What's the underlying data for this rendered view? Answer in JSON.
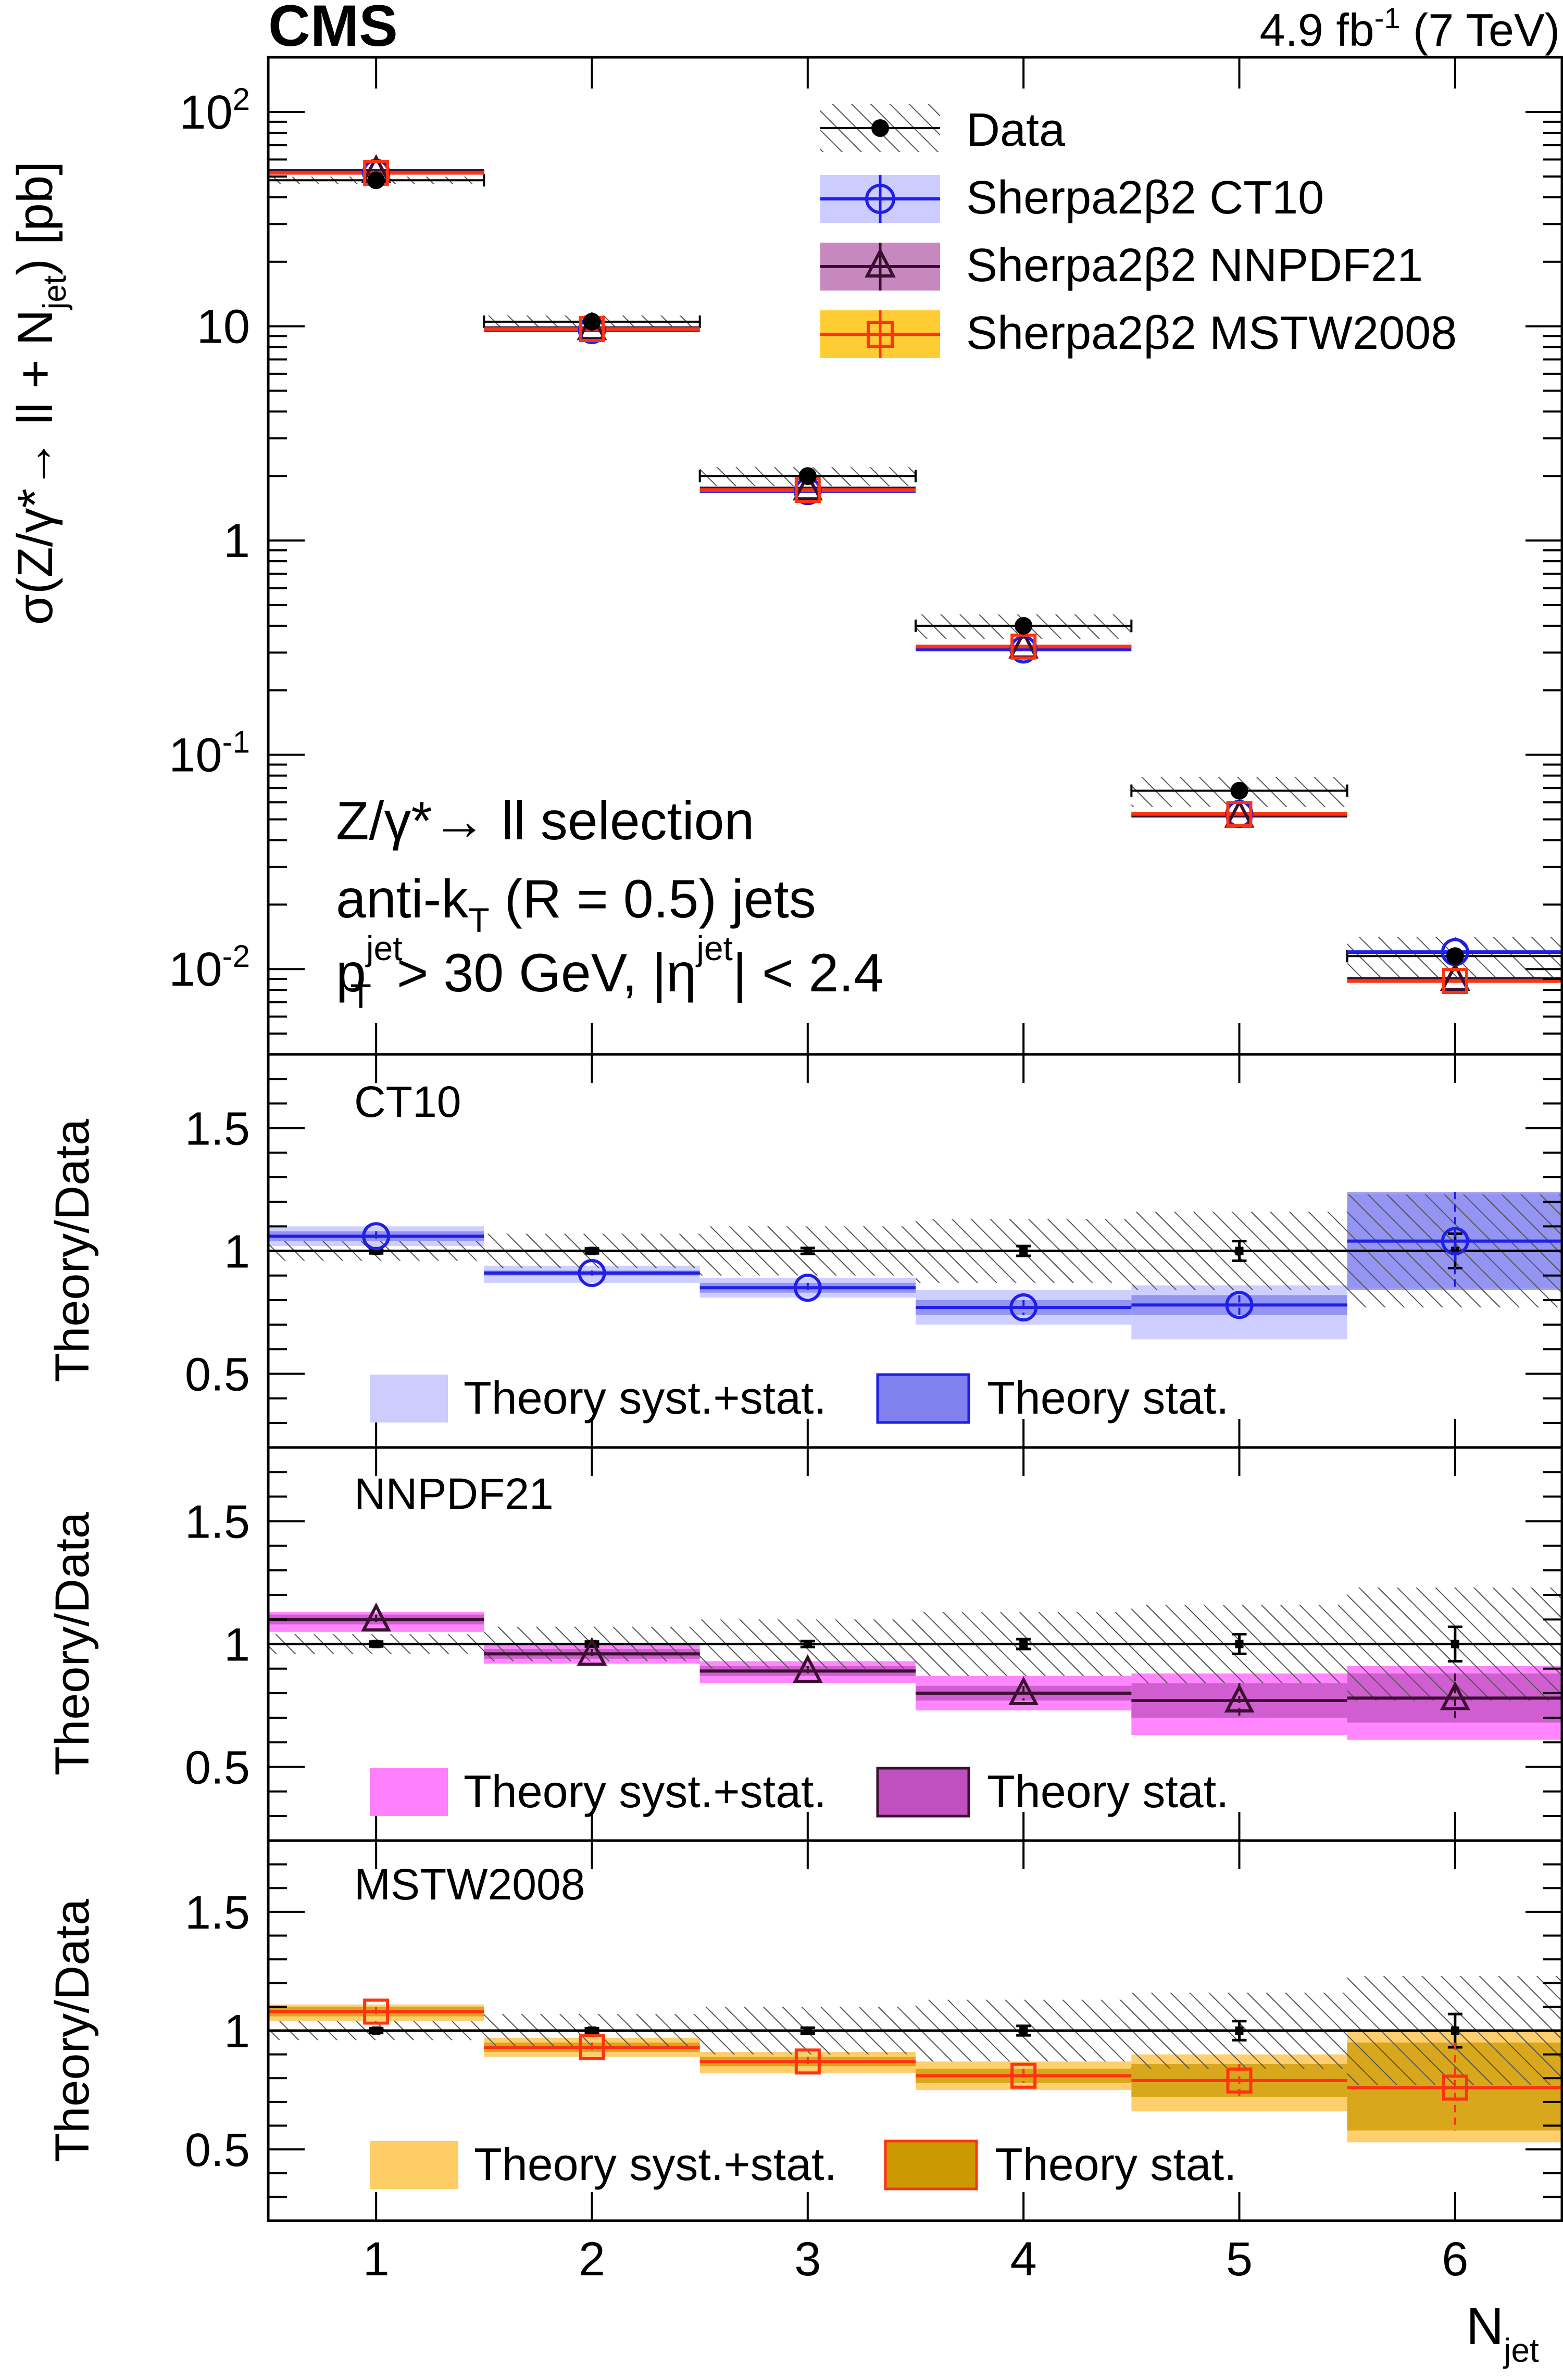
{
  "header": {
    "experiment": "CMS",
    "lumi": "4.9 fb",
    "lumi_exp": "-1",
    "energy": "(7 TeV)"
  },
  "colors": {
    "data": "#000000",
    "ct10_line": "#1f1fe6",
    "ct10_band_syst": "#ccccff",
    "ct10_band_stat": "#8080ee",
    "nnpdf_line": "#3a0f2f",
    "nnpdf_band_syst": "#ff80ff",
    "nnpdf_band_stat": "#c050c0",
    "mstw_marker": "#ff3311",
    "mstw_band_syst": "#ffcc66",
    "mstw_band_stat": "#cc9900",
    "hatch": "#555555"
  },
  "main_panel": {
    "y_title": "σ(Z/γ*→ ll + N",
    "y_title_sub": "jet",
    "y_title_end": ") [pb]",
    "y_ticks": [
      "10",
      "10",
      "1",
      "10",
      "10"
    ],
    "y_tick_exps": [
      "2",
      "",
      "",
      "-1",
      "-2"
    ],
    "legend": [
      "Data",
      "Sherpa2β2 CT10",
      "Sherpa2β2 NNPDF21",
      "Sherpa2β2 MSTW2008"
    ],
    "selection_line1": "Z/γ*→ ll selection",
    "selection_line2_a": "anti-k",
    "selection_line2_sub": "T",
    "selection_line2_b": " (R = 0.5) jets",
    "selection_line3_a": "p",
    "selection_line3_sup": "jet",
    "selection_line3_sub": "T",
    "selection_line3_b": " > 30 GeV, |η",
    "selection_line3_sup2": "jet",
    "selection_line3_c": "| < 2.4"
  },
  "ratio_panels": {
    "y_title": "Theory/Data",
    "y_ticks": [
      "1.5",
      "1",
      "0.5"
    ],
    "labels": [
      "CT10",
      "NNPDF21",
      "MSTW2008"
    ],
    "legend_syst": "Theory syst.+stat.",
    "legend_stat": "Theory stat."
  },
  "x_axis": {
    "title": "N",
    "title_sub": "jet",
    "ticks": [
      "1",
      "2",
      "3",
      "4",
      "5",
      "6"
    ]
  },
  "chart_data": {
    "type": "scatter",
    "x": [
      1,
      2,
      3,
      4,
      5,
      6
    ],
    "xlabel": "Njet",
    "ylabel": "σ(Z/γ*→ ll + Njet) [pb]",
    "ylog": true,
    "ylim": [
      0.004,
      180
    ],
    "xlim": [
      0.5,
      6.5
    ],
    "series": [
      {
        "name": "Data",
        "values": [
          48,
          10.5,
          2.0,
          0.4,
          0.068,
          0.0115
        ],
        "syst_rel": [
          0.04,
          0.07,
          0.1,
          0.13,
          0.16,
          0.23
        ]
      },
      {
        "name": "Sherpa2β2 CT10",
        "values": [
          52,
          9.6,
          1.7,
          0.31,
          0.053,
          0.012
        ]
      },
      {
        "name": "Sherpa2β2 NNPDF21",
        "values": [
          53,
          9.8,
          1.75,
          0.32,
          0.052,
          0.009
        ]
      },
      {
        "name": "Sherpa2β2 MSTW2008",
        "values": [
          52,
          9.7,
          1.72,
          0.32,
          0.053,
          0.0088
        ]
      }
    ],
    "ratios": [
      {
        "label": "CT10",
        "ylim": [
          0.2,
          1.8
        ],
        "values": [
          1.06,
          0.91,
          0.85,
          0.77,
          0.78,
          1.04
        ],
        "syst": [
          [
            1.02,
            1.1
          ],
          [
            0.87,
            0.94
          ],
          [
            0.81,
            0.89
          ],
          [
            0.7,
            0.84
          ],
          [
            0.64,
            0.86
          ],
          [
            0.85,
            1.23
          ]
        ],
        "stat": [
          [
            1.04,
            1.08
          ],
          [
            0.9,
            0.92
          ],
          [
            0.83,
            0.87
          ],
          [
            0.74,
            0.8
          ],
          [
            0.74,
            0.82
          ],
          [
            0.84,
            1.24
          ]
        ]
      },
      {
        "label": "NNPDF21",
        "ylim": [
          0.2,
          1.8
        ],
        "values": [
          1.1,
          0.96,
          0.89,
          0.8,
          0.77,
          0.78
        ],
        "syst": [
          [
            1.05,
            1.13
          ],
          [
            0.92,
            1.0
          ],
          [
            0.84,
            0.93
          ],
          [
            0.73,
            0.87
          ],
          [
            0.63,
            0.88
          ],
          [
            0.61,
            0.91
          ]
        ],
        "stat": [
          [
            1.08,
            1.12
          ],
          [
            0.94,
            0.98
          ],
          [
            0.87,
            0.91
          ],
          [
            0.77,
            0.83
          ],
          [
            0.7,
            0.84
          ],
          [
            0.68,
            0.88
          ]
        ]
      },
      {
        "label": "MSTW2008",
        "ylim": [
          0.2,
          1.8
        ],
        "values": [
          1.08,
          0.93,
          0.87,
          0.81,
          0.79,
          0.76
        ],
        "syst": [
          [
            1.04,
            1.11
          ],
          [
            0.89,
            0.97
          ],
          [
            0.82,
            0.91
          ],
          [
            0.75,
            0.87
          ],
          [
            0.66,
            0.9
          ],
          [
            0.53,
            1.0
          ]
        ],
        "stat": [
          [
            1.06,
            1.1
          ],
          [
            0.91,
            0.95
          ],
          [
            0.85,
            0.89
          ],
          [
            0.78,
            0.84
          ],
          [
            0.72,
            0.86
          ],
          [
            0.58,
            0.95
          ]
        ]
      }
    ],
    "data_ratio_err": {
      "stat": [
        0.01,
        0.01,
        0.012,
        0.02,
        0.04,
        0.07
      ],
      "syst": [
        0.04,
        0.07,
        0.1,
        0.13,
        0.16,
        0.23
      ]
    }
  }
}
